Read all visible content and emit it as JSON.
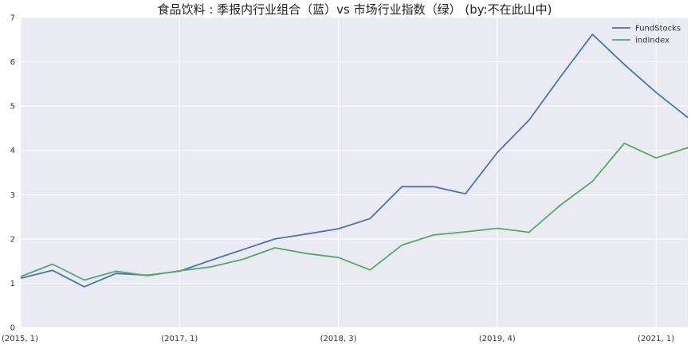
{
  "chart_data": {
    "type": "line",
    "title": "食品饮料 : 季报内行业组合（蓝）vs 市场行业指数（绿） (by:不在此山中)",
    "xlabel": "",
    "ylabel": "",
    "x": [
      0,
      1,
      2,
      3,
      4,
      5,
      6,
      7,
      8,
      9,
      10,
      11,
      12,
      13,
      14,
      15,
      16,
      17,
      18,
      19,
      20,
      21
    ],
    "xlim": [
      0,
      21
    ],
    "ylim": [
      0,
      7
    ],
    "x_ticks": [
      {
        "pos": 0,
        "label": "(2015, 1)"
      },
      {
        "pos": 5,
        "label": "(2017, 1)"
      },
      {
        "pos": 10,
        "label": "(2018, 3)"
      },
      {
        "pos": 15,
        "label": "(2019, 4)"
      },
      {
        "pos": 20,
        "label": "(2021, 1)"
      }
    ],
    "y_ticks": [
      "0",
      "1",
      "2",
      "3",
      "4",
      "5",
      "6",
      "7"
    ],
    "grid": true,
    "legend_position": "top-right",
    "series": [
      {
        "name": "FundStocks",
        "color": "#4c72b0",
        "values": [
          1.11,
          1.29,
          0.92,
          1.22,
          1.18,
          1.27,
          1.52,
          1.76,
          2.0,
          2.11,
          2.23,
          2.46,
          3.18,
          3.18,
          3.02,
          3.95,
          4.68,
          5.67,
          6.62,
          5.94,
          5.31,
          4.74
        ]
      },
      {
        "name": "indIndex",
        "color": "#55a868",
        "values": [
          1.15,
          1.43,
          1.07,
          1.27,
          1.17,
          1.28,
          1.37,
          1.54,
          1.8,
          1.67,
          1.58,
          1.3,
          1.86,
          2.09,
          2.16,
          2.24,
          2.15,
          2.77,
          3.3,
          4.16,
          3.83,
          4.06
        ]
      }
    ]
  }
}
